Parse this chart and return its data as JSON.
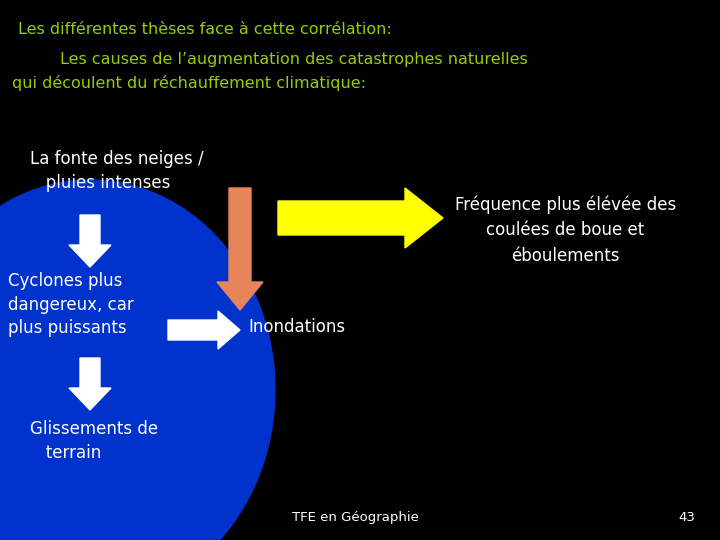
{
  "bg_color": "#000000",
  "blue_color": "#0033CC",
  "title1": "Les différentes thèses face à cette corrélation:",
  "title1_color": "#99CC00",
  "title2_line1": "Les causes de l’augmentation des catastrophes naturelles",
  "title2_line2": "qui découlent du réchauffement climatique:",
  "title2_color": "#99CC00",
  "text_white": "#FFFFFF",
  "text_fonte": "La fonte des neiges /\n   pluies intenses",
  "text_cyclones": "Cyclones plus\ndangereux, car\nplus puissants",
  "text_glissements": "Glissements de\n   terrain",
  "text_right": "Fréquence plus élévée des\ncoulées de boue et\néboulements",
  "text_inondations": "Inondations",
  "footer_text": "TFE en Géographie",
  "footer_page": "43",
  "arrow_white_color": "#FFFFFF",
  "arrow_orange_color": "#E8845A",
  "arrow_yellow_color": "#FFFF00"
}
